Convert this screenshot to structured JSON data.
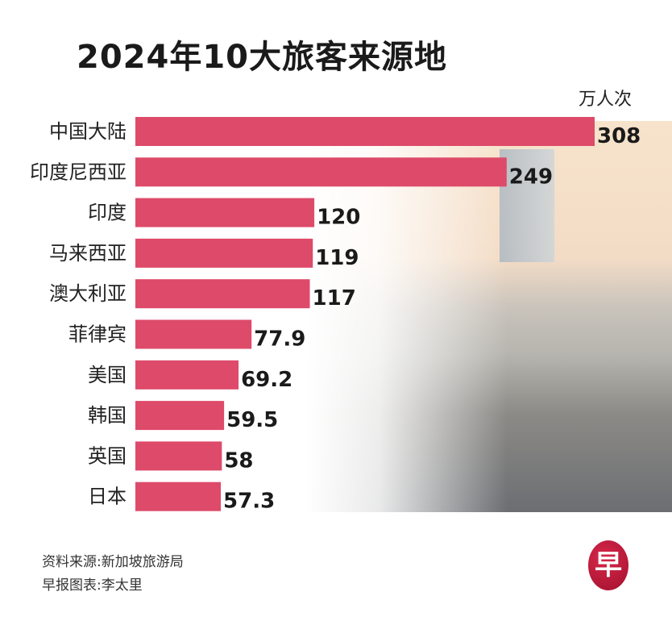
{
  "chart_data": {
    "type": "bar",
    "orientation": "horizontal",
    "title": "2024年10大旅客来源地",
    "unit": "万人次",
    "categories": [
      "中国大陆",
      "印度尼西亚",
      "印度",
      "马来西亚",
      "澳大利亚",
      "菲律宾",
      "美国",
      "韩国",
      "英国",
      "日本"
    ],
    "values": [
      308,
      249,
      120,
      119,
      117,
      77.9,
      69.2,
      59.5,
      58,
      57.3
    ],
    "value_labels": [
      "308",
      "249",
      "120",
      "119",
      "117",
      "77.9",
      "69.2",
      "59.5",
      "58",
      "57.3"
    ],
    "bar_color": "#de4a6a",
    "grid": false
  },
  "footer": {
    "source": "资料来源:新加坡旅游局",
    "credit": "早报图表:李太里"
  },
  "logo": {
    "text": "早",
    "color": "#c01a3c"
  }
}
